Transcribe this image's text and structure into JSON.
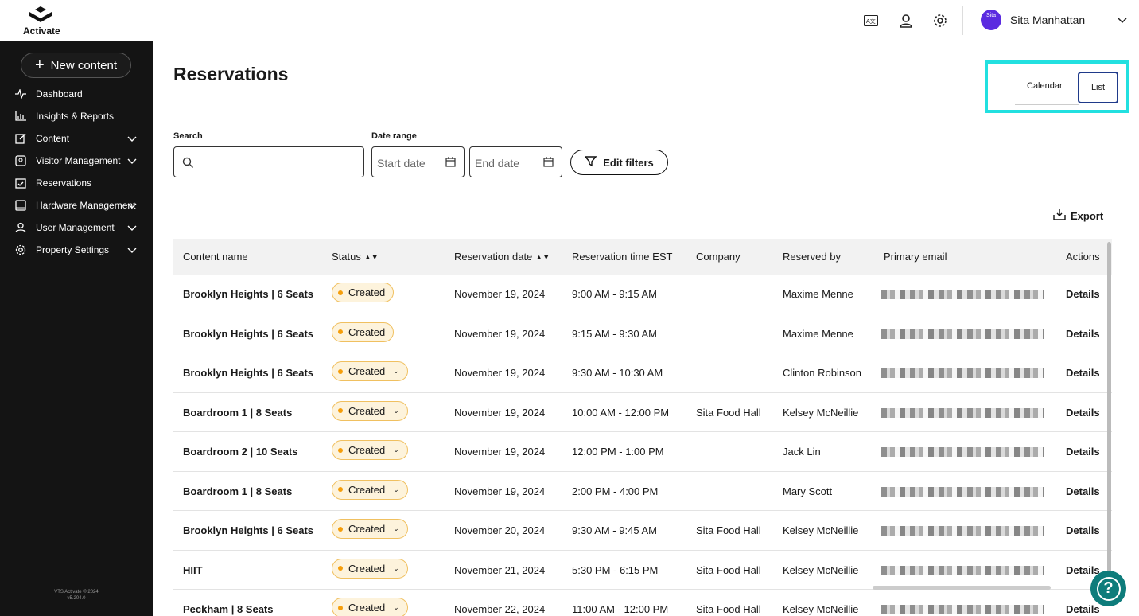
{
  "app": {
    "logo_text": "Activate",
    "version_line1": "VTS Activate © 2024",
    "version_line2": "v5.204.0"
  },
  "sidebar": {
    "new_content": "New content",
    "items": [
      {
        "label": "Dashboard",
        "icon": "pulse-icon",
        "expandable": false
      },
      {
        "label": "Insights & Reports",
        "icon": "bar-chart-icon",
        "expandable": false
      },
      {
        "label": "Content",
        "icon": "edit-icon",
        "expandable": true
      },
      {
        "label": "Visitor Management",
        "icon": "visitor-icon",
        "expandable": true
      },
      {
        "label": "Reservations",
        "icon": "calendar-check-icon",
        "expandable": false
      },
      {
        "label": "Hardware Management",
        "icon": "tablet-icon",
        "expandable": true
      },
      {
        "label": "User Management",
        "icon": "user-icon",
        "expandable": true
      },
      {
        "label": "Property Settings",
        "icon": "gear-icon",
        "expandable": true
      }
    ]
  },
  "topbar": {
    "avatar_text": "Sita",
    "user_name": "Sita Manhattan"
  },
  "page": {
    "title": "Reservations",
    "view_calendar": "Calendar",
    "view_list": "List",
    "search_label": "Search",
    "date_range_label": "Date range",
    "start_date": "Start date",
    "end_date": "End date",
    "edit_filters": "Edit filters",
    "export": "Export"
  },
  "table": {
    "headers": {
      "content_name": "Content name",
      "status": "Status",
      "reservation_date": "Reservation date",
      "reservation_time": "Reservation time EST",
      "company": "Company",
      "reserved_by": "Reserved by",
      "primary_email": "Primary email",
      "actions": "Actions"
    },
    "rows": [
      {
        "name": "Brooklyn Heights | 6 Seats",
        "status": "Created",
        "dropdown": false,
        "date": "November 19, 2024",
        "time": "9:00 AM - 9:15 AM",
        "company": "",
        "reserved_by": "Maxime Menne",
        "action": "Details"
      },
      {
        "name": "Brooklyn Heights | 6 Seats",
        "status": "Created",
        "dropdown": false,
        "date": "November 19, 2024",
        "time": "9:15 AM - 9:30 AM",
        "company": "",
        "reserved_by": "Maxime Menne",
        "action": "Details"
      },
      {
        "name": "Brooklyn Heights | 6 Seats",
        "status": "Created",
        "dropdown": true,
        "date": "November 19, 2024",
        "time": "9:30 AM - 10:30 AM",
        "company": "",
        "reserved_by": "Clinton Robinson",
        "action": "Details"
      },
      {
        "name": "Boardroom 1 | 8 Seats",
        "status": "Created",
        "dropdown": true,
        "date": "November 19, 2024",
        "time": "10:00 AM - 12:00 PM",
        "company": "Sita Food Hall",
        "reserved_by": "Kelsey McNeillie",
        "action": "Details"
      },
      {
        "name": "Boardroom 2 | 10 Seats",
        "status": "Created",
        "dropdown": true,
        "date": "November 19, 2024",
        "time": "12:00 PM - 1:00 PM",
        "company": "",
        "reserved_by": "Jack Lin",
        "action": "Details"
      },
      {
        "name": "Boardroom 1 | 8 Seats",
        "status": "Created",
        "dropdown": true,
        "date": "November 19, 2024",
        "time": "2:00 PM - 4:00 PM",
        "company": "",
        "reserved_by": "Mary Scott",
        "action": "Details"
      },
      {
        "name": "Brooklyn Heights | 6 Seats",
        "status": "Created",
        "dropdown": true,
        "date": "November 20, 2024",
        "time": "9:30 AM - 9:45 AM",
        "company": "Sita Food Hall",
        "reserved_by": "Kelsey McNeillie",
        "action": "Details"
      },
      {
        "name": "HIIT",
        "status": "Created",
        "dropdown": true,
        "date": "November 21, 2024",
        "time": "5:30 PM - 6:15 PM",
        "company": "Sita Food Hall",
        "reserved_by": "Kelsey McNeillie",
        "action": "Details"
      },
      {
        "name": "Peckham | 8 Seats",
        "status": "Created",
        "dropdown": true,
        "date": "November 22, 2024",
        "time": "11:00 AM - 12:00 PM",
        "company": "Sita Food Hall",
        "reserved_by": "Kelsey McNeillie",
        "action": "Details"
      }
    ]
  },
  "help": {
    "label": "?"
  },
  "colors": {
    "sidebar_bg": "#141414",
    "highlight": "#22e0e0",
    "badge_bg": "#fdf3dc",
    "badge_dot": "#f59e0b",
    "help_bg": "#0e7c7b"
  }
}
